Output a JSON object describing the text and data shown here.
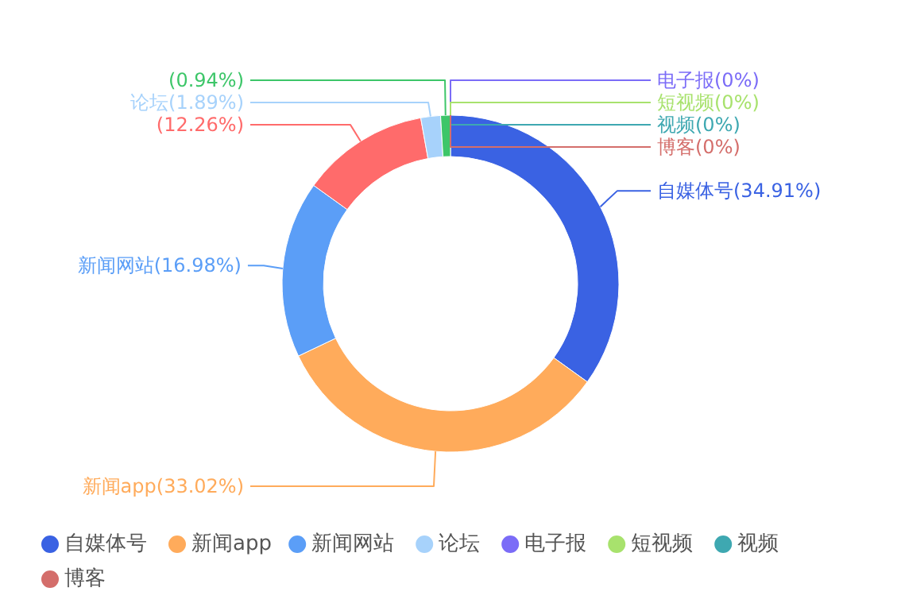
{
  "chart_data": {
    "type": "donut",
    "categories": [
      "自媒体号",
      "新闻app",
      "新闻网站",
      null,
      "论坛",
      null,
      "电子报",
      "短视频",
      "视频",
      "博客"
    ],
    "values": [
      34.91,
      33.02,
      16.98,
      12.26,
      1.89,
      0.94,
      0,
      0,
      0,
      0
    ],
    "colors": [
      "#3a62e3",
      "#ffab5b",
      "#5b9ef7",
      "#ff6b6b",
      "#a7d2fb",
      "#3dc669",
      "#7b6cf7",
      "#a8e26d",
      "#3ea8b1",
      "#d46e6b"
    ],
    "value_labels": [
      "自媒体号(34.91%)",
      "新闻app(33.02%)",
      "新闻网站(16.98%)",
      "(12.26%)",
      "论坛(1.89%)",
      "(0.94%)",
      "电子报(0%)",
      "短视频(0%)",
      "视频(0%)",
      "博客(0%)"
    ],
    "legend": "bottom"
  }
}
